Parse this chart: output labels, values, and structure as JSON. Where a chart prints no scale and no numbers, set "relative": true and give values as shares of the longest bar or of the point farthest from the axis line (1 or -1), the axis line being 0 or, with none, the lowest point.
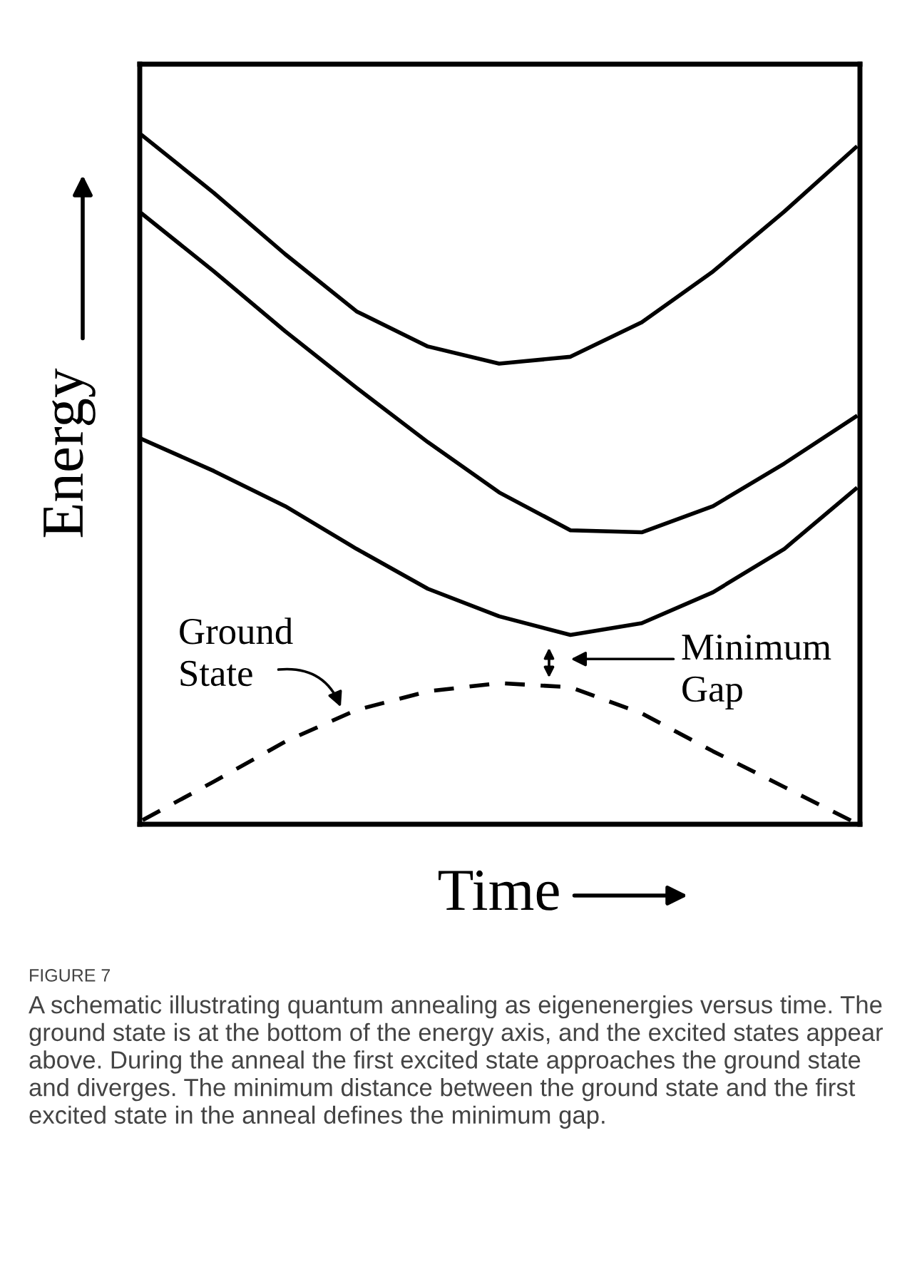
{
  "chart_data": {
    "type": "line",
    "relative": true,
    "xlabel": "Time",
    "ylabel": "Energy",
    "categories": [
      null,
      null,
      null,
      null,
      null,
      null,
      null,
      null,
      null,
      null,
      null
    ],
    "series": [
      {
        "color": "#000000",
        "line_style": "solid",
        "values": [
          1.0,
          0.917,
          0.828,
          0.745,
          0.694,
          0.669,
          0.679,
          0.729,
          0.803,
          0.89,
          0.983
        ]
      },
      {
        "color": "#000000",
        "line_style": "solid",
        "values": [
          0.886,
          0.803,
          0.716,
          0.634,
          0.555,
          0.482,
          0.427,
          0.424,
          0.462,
          0.524,
          0.592
        ]
      },
      {
        "color": "#000000",
        "line_style": "solid",
        "values": [
          0.559,
          0.513,
          0.462,
          0.4,
          0.342,
          0.302,
          0.275,
          0.292,
          0.337,
          0.4,
          0.487
        ]
      },
      {
        "color": "#000000",
        "line_style": "dashed",
        "values": [
          0.006,
          0.062,
          0.12,
          0.166,
          0.193,
          0.205,
          0.199,
          0.161,
          0.106,
          0.054,
          0.002
        ]
      }
    ],
    "annotations": [
      "Ground\nState",
      "Minimum\nGap",
      "FIGURE 7",
      "A schematic illustrating quantum annealing as eigenenergies versus time. The ground state is at the bottom of the energy axis, and the excited states appear above. During the anneal the first excited state approaches the ground state and diverges. The minimum distance between the ground state and the first excited state in the anneal defines the minimum gap."
    ]
  }
}
